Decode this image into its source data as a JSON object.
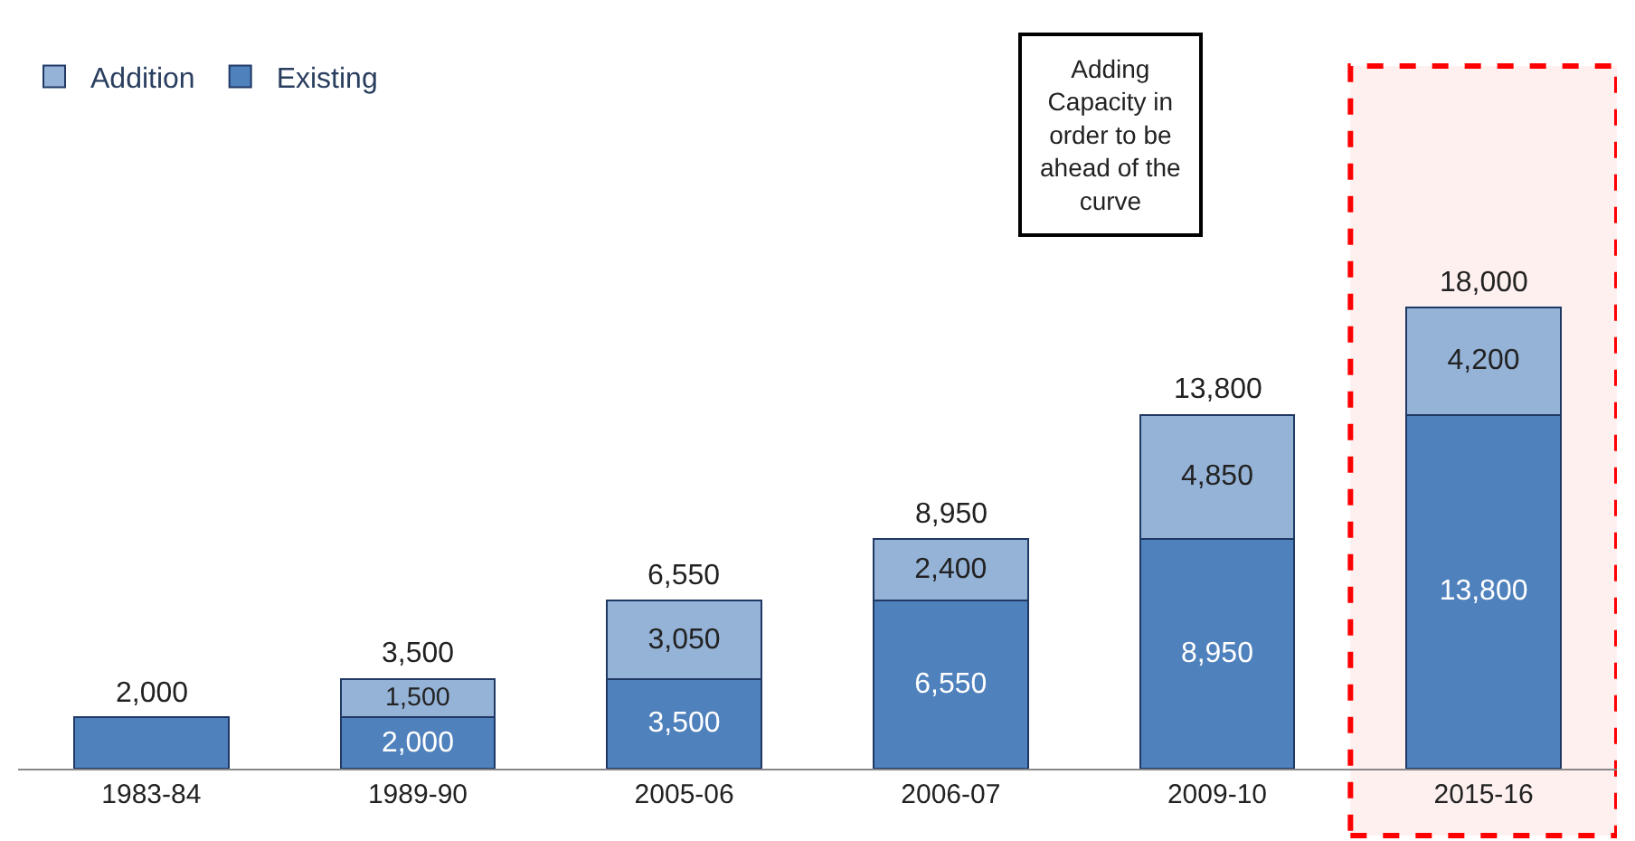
{
  "chart_data": {
    "type": "bar",
    "stacked": true,
    "categories": [
      "1983-84",
      "1989-90",
      "2005-06",
      "2006-07",
      "2009-10",
      "2015-16"
    ],
    "series": [
      {
        "name": "Existing",
        "color": "#4f81bd",
        "values": [
          2000,
          2000,
          3500,
          6550,
          8950,
          13800
        ],
        "value_labels": [
          null,
          "2,000",
          "3,500",
          "6,550",
          "8,950",
          "13,800"
        ]
      },
      {
        "name": "Addition",
        "color": "#95b3d7",
        "values": [
          null,
          1500,
          3050,
          2400,
          4850,
          4200
        ],
        "value_labels": [
          null,
          "1,500",
          "3,050",
          "2,400",
          "4,850",
          "4,200"
        ]
      }
    ],
    "totals": [
      "2,000",
      "3,500",
      "6,550",
      "8,950",
      "13,800",
      "18,000"
    ],
    "legend": "top left",
    "grid": false,
    "annotations": [
      "Adding Capacity in order to be ahead of the curve"
    ],
    "bands": [
      {
        "axis": "x",
        "from": "2015-16",
        "to": "2015-16",
        "color": "#ff0000"
      }
    ]
  }
}
